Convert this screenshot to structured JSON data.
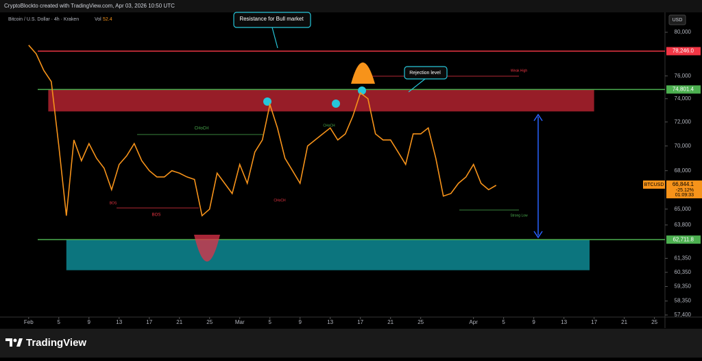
{
  "chart_data": {
    "type": "line",
    "watermark": "CryptoBlockto created with TradingView.com, Apr 03, 2026 10:50 UTC",
    "title": "Bitcoin / U.S. Dollar · 4h · Kraken",
    "volume_label": "Vol",
    "volume_value": "52.4",
    "currency": "USD",
    "brand": "TradingView",
    "log_scale": true,
    "ylim": [
      57260,
      81630
    ],
    "yticks": [
      {
        "value": 80000,
        "label": "80,000"
      },
      {
        "value": 76000,
        "label": "76,000"
      },
      {
        "value": 74000,
        "label": "74,000"
      },
      {
        "value": 72000,
        "label": "72,000"
      },
      {
        "value": 70000,
        "label": "70,000"
      },
      {
        "value": 68000,
        "label": "68,000"
      },
      {
        "value": 65000,
        "label": "65,000"
      },
      {
        "value": 63800,
        "label": "63,800"
      },
      {
        "value": 61350,
        "label": "61,350"
      },
      {
        "value": 60350,
        "label": "60,350"
      },
      {
        "value": 59350,
        "label": "59,350"
      },
      {
        "value": 58350,
        "label": "58,350"
      },
      {
        "value": 57400,
        "label": "57,400"
      }
    ],
    "xlim": [
      -3.8,
      84.4
    ],
    "xticks": [
      {
        "value": 0,
        "label": "Feb"
      },
      {
        "value": 4,
        "label": "5"
      },
      {
        "value": 8,
        "label": "9"
      },
      {
        "value": 12,
        "label": "13"
      },
      {
        "value": 16,
        "label": "17"
      },
      {
        "value": 20,
        "label": "21"
      },
      {
        "value": 24,
        "label": "25"
      },
      {
        "value": 28,
        "label": "Mar"
      },
      {
        "value": 32,
        "label": "5"
      },
      {
        "value": 36,
        "label": "9"
      },
      {
        "value": 40,
        "label": "13"
      },
      {
        "value": 44,
        "label": "17"
      },
      {
        "value": 48,
        "label": "21"
      },
      {
        "value": 52,
        "label": "25"
      },
      {
        "value": 59,
        "label": "Apr"
      },
      {
        "value": 63,
        "label": "5"
      },
      {
        "value": 67,
        "label": "9"
      },
      {
        "value": 71,
        "label": "13"
      },
      {
        "value": 75,
        "label": "17"
      },
      {
        "value": 79,
        "label": "21"
      },
      {
        "value": 83,
        "label": "25"
      }
    ],
    "series": [
      {
        "name": "BTCUSD",
        "color": "#f7931a",
        "x": [
          0,
          1,
          2,
          3,
          4,
          5,
          6,
          7,
          8,
          9,
          10,
          11,
          12,
          13,
          14,
          15,
          16,
          17,
          18,
          19,
          20,
          21,
          22,
          23,
          24,
          25,
          26,
          27,
          28,
          29,
          30,
          31,
          32,
          33,
          34,
          35,
          36,
          37,
          38,
          39,
          40,
          41,
          42,
          43,
          44,
          45,
          46,
          47,
          48,
          49,
          50,
          51,
          52,
          53,
          54,
          55,
          56,
          57,
          58,
          59,
          60,
          61,
          62
        ],
        "values": [
          78800,
          78000,
          76500,
          75500,
          70000,
          64500,
          70500,
          68800,
          70200,
          69000,
          68200,
          66500,
          68500,
          69200,
          70200,
          68800,
          68000,
          67500,
          67500,
          68000,
          67800,
          67500,
          67300,
          64500,
          65000,
          67800,
          67000,
          66200,
          68500,
          67000,
          69500,
          70500,
          73500,
          71500,
          69000,
          68000,
          67000,
          70000,
          70500,
          71000,
          71500,
          70500,
          71000,
          72500,
          74500,
          74000,
          71000,
          70500,
          70500,
          69500,
          68500,
          71000,
          71000,
          71500,
          69000,
          66000,
          66200,
          67000,
          67500,
          68500,
          67000,
          66500,
          66844
        ]
      }
    ],
    "last_price": {
      "value": 66844.1,
      "label": "66,844.1",
      "change": "-25.12%",
      "countdown": "01:09:33",
      "color": "#f7931a"
    },
    "levels": [
      {
        "value": 78246,
        "label": "78,246.0",
        "color": "#f23645"
      },
      {
        "value": 74801.4,
        "label": "74,801.4",
        "color": "#4caf50"
      },
      {
        "value": 62711.8,
        "label": "62,711.8",
        "color": "#4caf50"
      }
    ],
    "zones": [
      {
        "y": [
          72900,
          74801.4
        ],
        "x": [
          2.6,
          75
        ],
        "color": "#b2222f"
      },
      {
        "y": [
          60500,
          62711.8
        ],
        "x": [
          5,
          74.4
        ],
        "color": "#0e8a94"
      }
    ],
    "annotations": [
      "Resistance for Bull market",
      "Rejection level",
      "BOS",
      "CHoCH",
      "Strong Low",
      "Weak High",
      "BOS",
      "CHoCH",
      "CHoCH"
    ]
  }
}
